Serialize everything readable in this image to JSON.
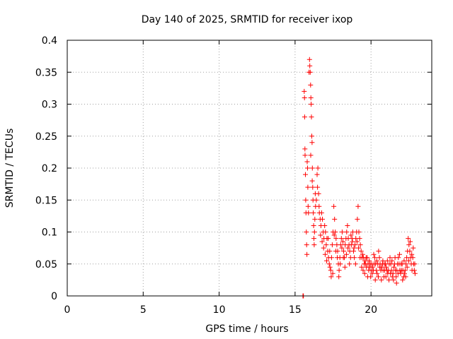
{
  "chart_data": {
    "type": "scatter",
    "title": "Day 140 of 2025, SRMTID for receiver ixop",
    "xlabel": "GPS time / hours",
    "ylabel": "SRMTID / TECUs",
    "xlim": [
      0,
      24
    ],
    "ylim": [
      0,
      0.4
    ],
    "x_ticks": [
      0,
      5,
      10,
      15,
      20
    ],
    "x_tick_labels": [
      "0",
      "5",
      "10",
      "15",
      "20"
    ],
    "y_ticks": [
      0,
      0.05,
      0.1,
      0.15,
      0.2,
      0.25,
      0.3,
      0.35,
      0.4
    ],
    "y_tick_labels": [
      "0",
      "0.05",
      "0.1",
      "0.15",
      "0.2",
      "0.25",
      "0.3",
      "0.35",
      "0.4"
    ],
    "grid": true,
    "marker": "+",
    "color": "#ff0000",
    "series": [
      {
        "name": "SRMTID",
        "points": [
          [
            15.52,
            0.0
          ],
          [
            15.55,
            0.0
          ],
          [
            15.6,
            0.32
          ],
          [
            15.62,
            0.31
          ],
          [
            15.63,
            0.28
          ],
          [
            15.65,
            0.23
          ],
          [
            15.66,
            0.22
          ],
          [
            15.68,
            0.19
          ],
          [
            15.7,
            0.15
          ],
          [
            15.72,
            0.13
          ],
          [
            15.74,
            0.1
          ],
          [
            15.76,
            0.08
          ],
          [
            15.78,
            0.065
          ],
          [
            15.8,
            0.21
          ],
          [
            15.82,
            0.2
          ],
          [
            15.84,
            0.17
          ],
          [
            15.86,
            0.14
          ],
          [
            15.88,
            0.13
          ],
          [
            15.92,
            0.35
          ],
          [
            15.95,
            0.37
          ],
          [
            15.97,
            0.36
          ],
          [
            16.0,
            0.35
          ],
          [
            16.02,
            0.33
          ],
          [
            16.04,
            0.31
          ],
          [
            16.06,
            0.3
          ],
          [
            16.08,
            0.28
          ],
          [
            16.1,
            0.25
          ],
          [
            16.12,
            0.24
          ],
          [
            16.14,
            0.2
          ],
          [
            16.16,
            0.17
          ],
          [
            16.18,
            0.15
          ],
          [
            16.2,
            0.13
          ],
          [
            16.22,
            0.11
          ],
          [
            16.24,
            0.09
          ],
          [
            16.26,
            0.08
          ],
          [
            16.28,
            0.1
          ],
          [
            16.3,
            0.12
          ],
          [
            16.35,
            0.14
          ],
          [
            16.4,
            0.15
          ],
          [
            16.45,
            0.19
          ],
          [
            16.5,
            0.2
          ],
          [
            16.55,
            0.16
          ],
          [
            16.6,
            0.13
          ],
          [
            16.65,
            0.12
          ],
          [
            16.7,
            0.11
          ],
          [
            16.75,
            0.13
          ],
          [
            16.8,
            0.12
          ],
          [
            16.85,
            0.1
          ],
          [
            16.9,
            0.09
          ],
          [
            16.95,
            0.11
          ],
          [
            17.0,
            0.1
          ],
          [
            17.05,
            0.08
          ],
          [
            17.1,
            0.09
          ],
          [
            17.15,
            0.07
          ],
          [
            17.2,
            0.06
          ],
          [
            17.25,
            0.05
          ],
          [
            17.3,
            0.045
          ],
          [
            17.35,
            0.04
          ],
          [
            17.4,
            0.06
          ],
          [
            17.45,
            0.08
          ],
          [
            17.5,
            0.1
          ],
          [
            17.55,
            0.14
          ],
          [
            17.6,
            0.12
          ],
          [
            17.65,
            0.1
          ],
          [
            17.7,
            0.09
          ],
          [
            17.75,
            0.08
          ],
          [
            17.8,
            0.07
          ],
          [
            17.85,
            0.05
          ],
          [
            17.9,
            0.04
          ],
          [
            17.95,
            0.06
          ],
          [
            18.0,
            0.08
          ],
          [
            18.05,
            0.09
          ],
          [
            18.1,
            0.1
          ],
          [
            18.15,
            0.085
          ],
          [
            18.2,
            0.07
          ],
          [
            18.25,
            0.06
          ],
          [
            18.3,
            0.08
          ],
          [
            18.35,
            0.09
          ],
          [
            18.4,
            0.1
          ],
          [
            18.45,
            0.11
          ],
          [
            18.5,
            0.09
          ],
          [
            18.55,
            0.08
          ],
          [
            18.6,
            0.07
          ],
          [
            18.65,
            0.06
          ],
          [
            18.7,
            0.08
          ],
          [
            18.75,
            0.09
          ],
          [
            18.8,
            0.1
          ],
          [
            18.85,
            0.07
          ],
          [
            18.9,
            0.06
          ],
          [
            18.95,
            0.08
          ],
          [
            19.0,
            0.09
          ],
          [
            19.05,
            0.1
          ],
          [
            19.1,
            0.12
          ],
          [
            19.15,
            0.14
          ],
          [
            19.2,
            0.1
          ],
          [
            19.25,
            0.09
          ],
          [
            19.3,
            0.08
          ],
          [
            19.35,
            0.07
          ],
          [
            19.4,
            0.06
          ],
          [
            19.45,
            0.065
          ],
          [
            19.5,
            0.06
          ],
          [
            19.55,
            0.05
          ],
          [
            19.6,
            0.055
          ],
          [
            19.65,
            0.05
          ],
          [
            19.7,
            0.045
          ],
          [
            19.75,
            0.06
          ],
          [
            19.8,
            0.05
          ],
          [
            19.85,
            0.04
          ],
          [
            19.9,
            0.045
          ],
          [
            19.95,
            0.05
          ],
          [
            20.0,
            0.04
          ],
          [
            20.05,
            0.05
          ],
          [
            20.1,
            0.045
          ],
          [
            20.15,
            0.04
          ],
          [
            20.2,
            0.05
          ],
          [
            20.25,
            0.06
          ],
          [
            20.3,
            0.05
          ],
          [
            20.35,
            0.04
          ],
          [
            20.4,
            0.035
          ],
          [
            20.45,
            0.05
          ],
          [
            20.5,
            0.07
          ],
          [
            20.55,
            0.06
          ],
          [
            20.6,
            0.05
          ],
          [
            20.65,
            0.04
          ],
          [
            20.7,
            0.045
          ],
          [
            20.75,
            0.05
          ],
          [
            20.8,
            0.04
          ],
          [
            20.85,
            0.03
          ],
          [
            20.9,
            0.04
          ],
          [
            20.95,
            0.05
          ],
          [
            21.0,
            0.045
          ],
          [
            21.05,
            0.04
          ],
          [
            21.1,
            0.035
          ],
          [
            21.15,
            0.04
          ],
          [
            21.2,
            0.05
          ],
          [
            21.25,
            0.06
          ],
          [
            21.3,
            0.05
          ],
          [
            21.35,
            0.04
          ],
          [
            21.4,
            0.03
          ],
          [
            21.45,
            0.035
          ],
          [
            21.5,
            0.045
          ],
          [
            21.55,
            0.05
          ],
          [
            21.6,
            0.04
          ],
          [
            21.65,
            0.03
          ],
          [
            21.7,
            0.04
          ],
          [
            21.75,
            0.05
          ],
          [
            21.8,
            0.06
          ],
          [
            21.85,
            0.05
          ],
          [
            21.9,
            0.04
          ],
          [
            21.95,
            0.035
          ],
          [
            22.0,
            0.04
          ],
          [
            22.05,
            0.05
          ],
          [
            22.1,
            0.04
          ],
          [
            22.15,
            0.03
          ],
          [
            22.2,
            0.035
          ],
          [
            22.25,
            0.04
          ],
          [
            22.3,
            0.05
          ],
          [
            22.35,
            0.06
          ],
          [
            22.4,
            0.07
          ],
          [
            22.45,
            0.09
          ],
          [
            22.5,
            0.08
          ],
          [
            22.55,
            0.07
          ],
          [
            22.6,
            0.06
          ],
          [
            22.65,
            0.05
          ],
          [
            22.7,
            0.04
          ],
          [
            22.75,
            0.06
          ],
          [
            22.8,
            0.05
          ],
          [
            22.85,
            0.04
          ],
          [
            22.9,
            0.035
          ],
          [
            16.03,
            0.22
          ],
          [
            16.13,
            0.18
          ],
          [
            16.33,
            0.16
          ],
          [
            16.48,
            0.17
          ],
          [
            16.58,
            0.14
          ],
          [
            16.68,
            0.095
          ],
          [
            16.78,
            0.085
          ],
          [
            16.88,
            0.075
          ],
          [
            16.98,
            0.065
          ],
          [
            17.08,
            0.055
          ],
          [
            17.18,
            0.09
          ],
          [
            17.28,
            0.07
          ],
          [
            17.38,
            0.03
          ],
          [
            17.48,
            0.035
          ],
          [
            17.58,
            0.095
          ],
          [
            17.68,
            0.07
          ],
          [
            17.78,
            0.06
          ],
          [
            17.88,
            0.03
          ],
          [
            17.98,
            0.05
          ],
          [
            18.08,
            0.075
          ],
          [
            18.18,
            0.06
          ],
          [
            18.28,
            0.045
          ],
          [
            18.38,
            0.065
          ],
          [
            18.48,
            0.075
          ],
          [
            18.58,
            0.05
          ],
          [
            18.68,
            0.095
          ],
          [
            18.78,
            0.085
          ],
          [
            18.88,
            0.075
          ],
          [
            18.98,
            0.05
          ],
          [
            19.08,
            0.085
          ],
          [
            19.18,
            0.075
          ],
          [
            19.28,
            0.06
          ],
          [
            19.38,
            0.045
          ],
          [
            19.48,
            0.04
          ],
          [
            19.58,
            0.035
          ],
          [
            19.68,
            0.06
          ],
          [
            19.78,
            0.03
          ],
          [
            19.88,
            0.055
          ],
          [
            19.98,
            0.03
          ],
          [
            20.08,
            0.035
          ],
          [
            20.18,
            0.065
          ],
          [
            20.28,
            0.025
          ],
          [
            20.38,
            0.055
          ],
          [
            20.48,
            0.03
          ],
          [
            20.58,
            0.045
          ],
          [
            20.68,
            0.025
          ],
          [
            20.78,
            0.055
          ],
          [
            20.88,
            0.05
          ],
          [
            20.98,
            0.03
          ],
          [
            21.08,
            0.055
          ],
          [
            21.18,
            0.025
          ],
          [
            21.28,
            0.035
          ],
          [
            21.38,
            0.055
          ],
          [
            21.48,
            0.025
          ],
          [
            21.58,
            0.06
          ],
          [
            21.68,
            0.02
          ],
          [
            21.78,
            0.035
          ],
          [
            21.88,
            0.065
          ],
          [
            21.98,
            0.05
          ],
          [
            22.08,
            0.025
          ],
          [
            22.18,
            0.055
          ],
          [
            22.28,
            0.03
          ],
          [
            22.38,
            0.045
          ],
          [
            22.48,
            0.055
          ],
          [
            22.58,
            0.085
          ],
          [
            22.68,
            0.065
          ],
          [
            22.78,
            0.075
          ],
          [
            22.88,
            0.05
          ]
        ]
      }
    ]
  }
}
